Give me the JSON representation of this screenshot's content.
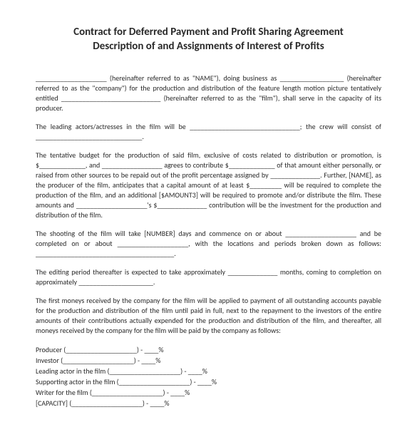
{
  "title_line1": "Contract for Deferred Payment and Profit Sharing Agreement",
  "title_line2": "Description of and Assignments of Interest of Profits",
  "p1": "____________________ (hereinafter referred to as \"NAME\"), doing business as __________________ (hereinafter referred to as the \"company\") for the production and distribution of the feature length motion picture tentatively entitled ____________________________ (hereinafter referred to as the \"film\"), shall serve in the capacity of its producer.",
  "p2": "The leading actors/actresses in the film will be _______________________________; the crew will consist of ______________________________.",
  "p3": "The tentative budget for the production of said film, exclusive of costs related to distribution or promotion, is $_____________, and _________________ agrees to contribute $_____________ of that amount either personally, or raised from other sources to be repaid out of the profit percentage assigned by ______________.  Further, [NAME], as the producer of the film, anticipates that a capital amount of at least $_________ will be required to complete the production of the film, and an additional [$AMOUNT3] will be required to promote and/or distribute the film.  These amounts and ____________________'s $______________ contribution will be the investment for the production and distribution of the film.",
  "p4": "The shooting of the film will take [NUMBER] days and commence on or about ____________________ and be completed on or about ____________________, with the locations and periods broken down as follows: _______________________________________.",
  "p5": "The editing period thereafter is expected to take approximately ______________ months, coming to completion on approximately _____________________.",
  "p6": "The first moneys received by the company for the film will be applied to payment of all outstanding accounts payable for the production and distribution of the film until paid in full, next to the repayment to the investors of the entire amounts of their contributions actually expended for the production and distribution of the film, and thereafter, all moneys received by the company for the film will be paid by the company as follows:",
  "roles": [
    "Producer (____________________) - ____%",
    "Investor (____________________) - ____%",
    "Leading actor in the film (____________________) - ____%",
    "Supporting actor in the film (____________________) - ____%",
    "Writer for the film (____________________) - ____%",
    "[CAPACITY] (____________________) - ____%"
  ]
}
